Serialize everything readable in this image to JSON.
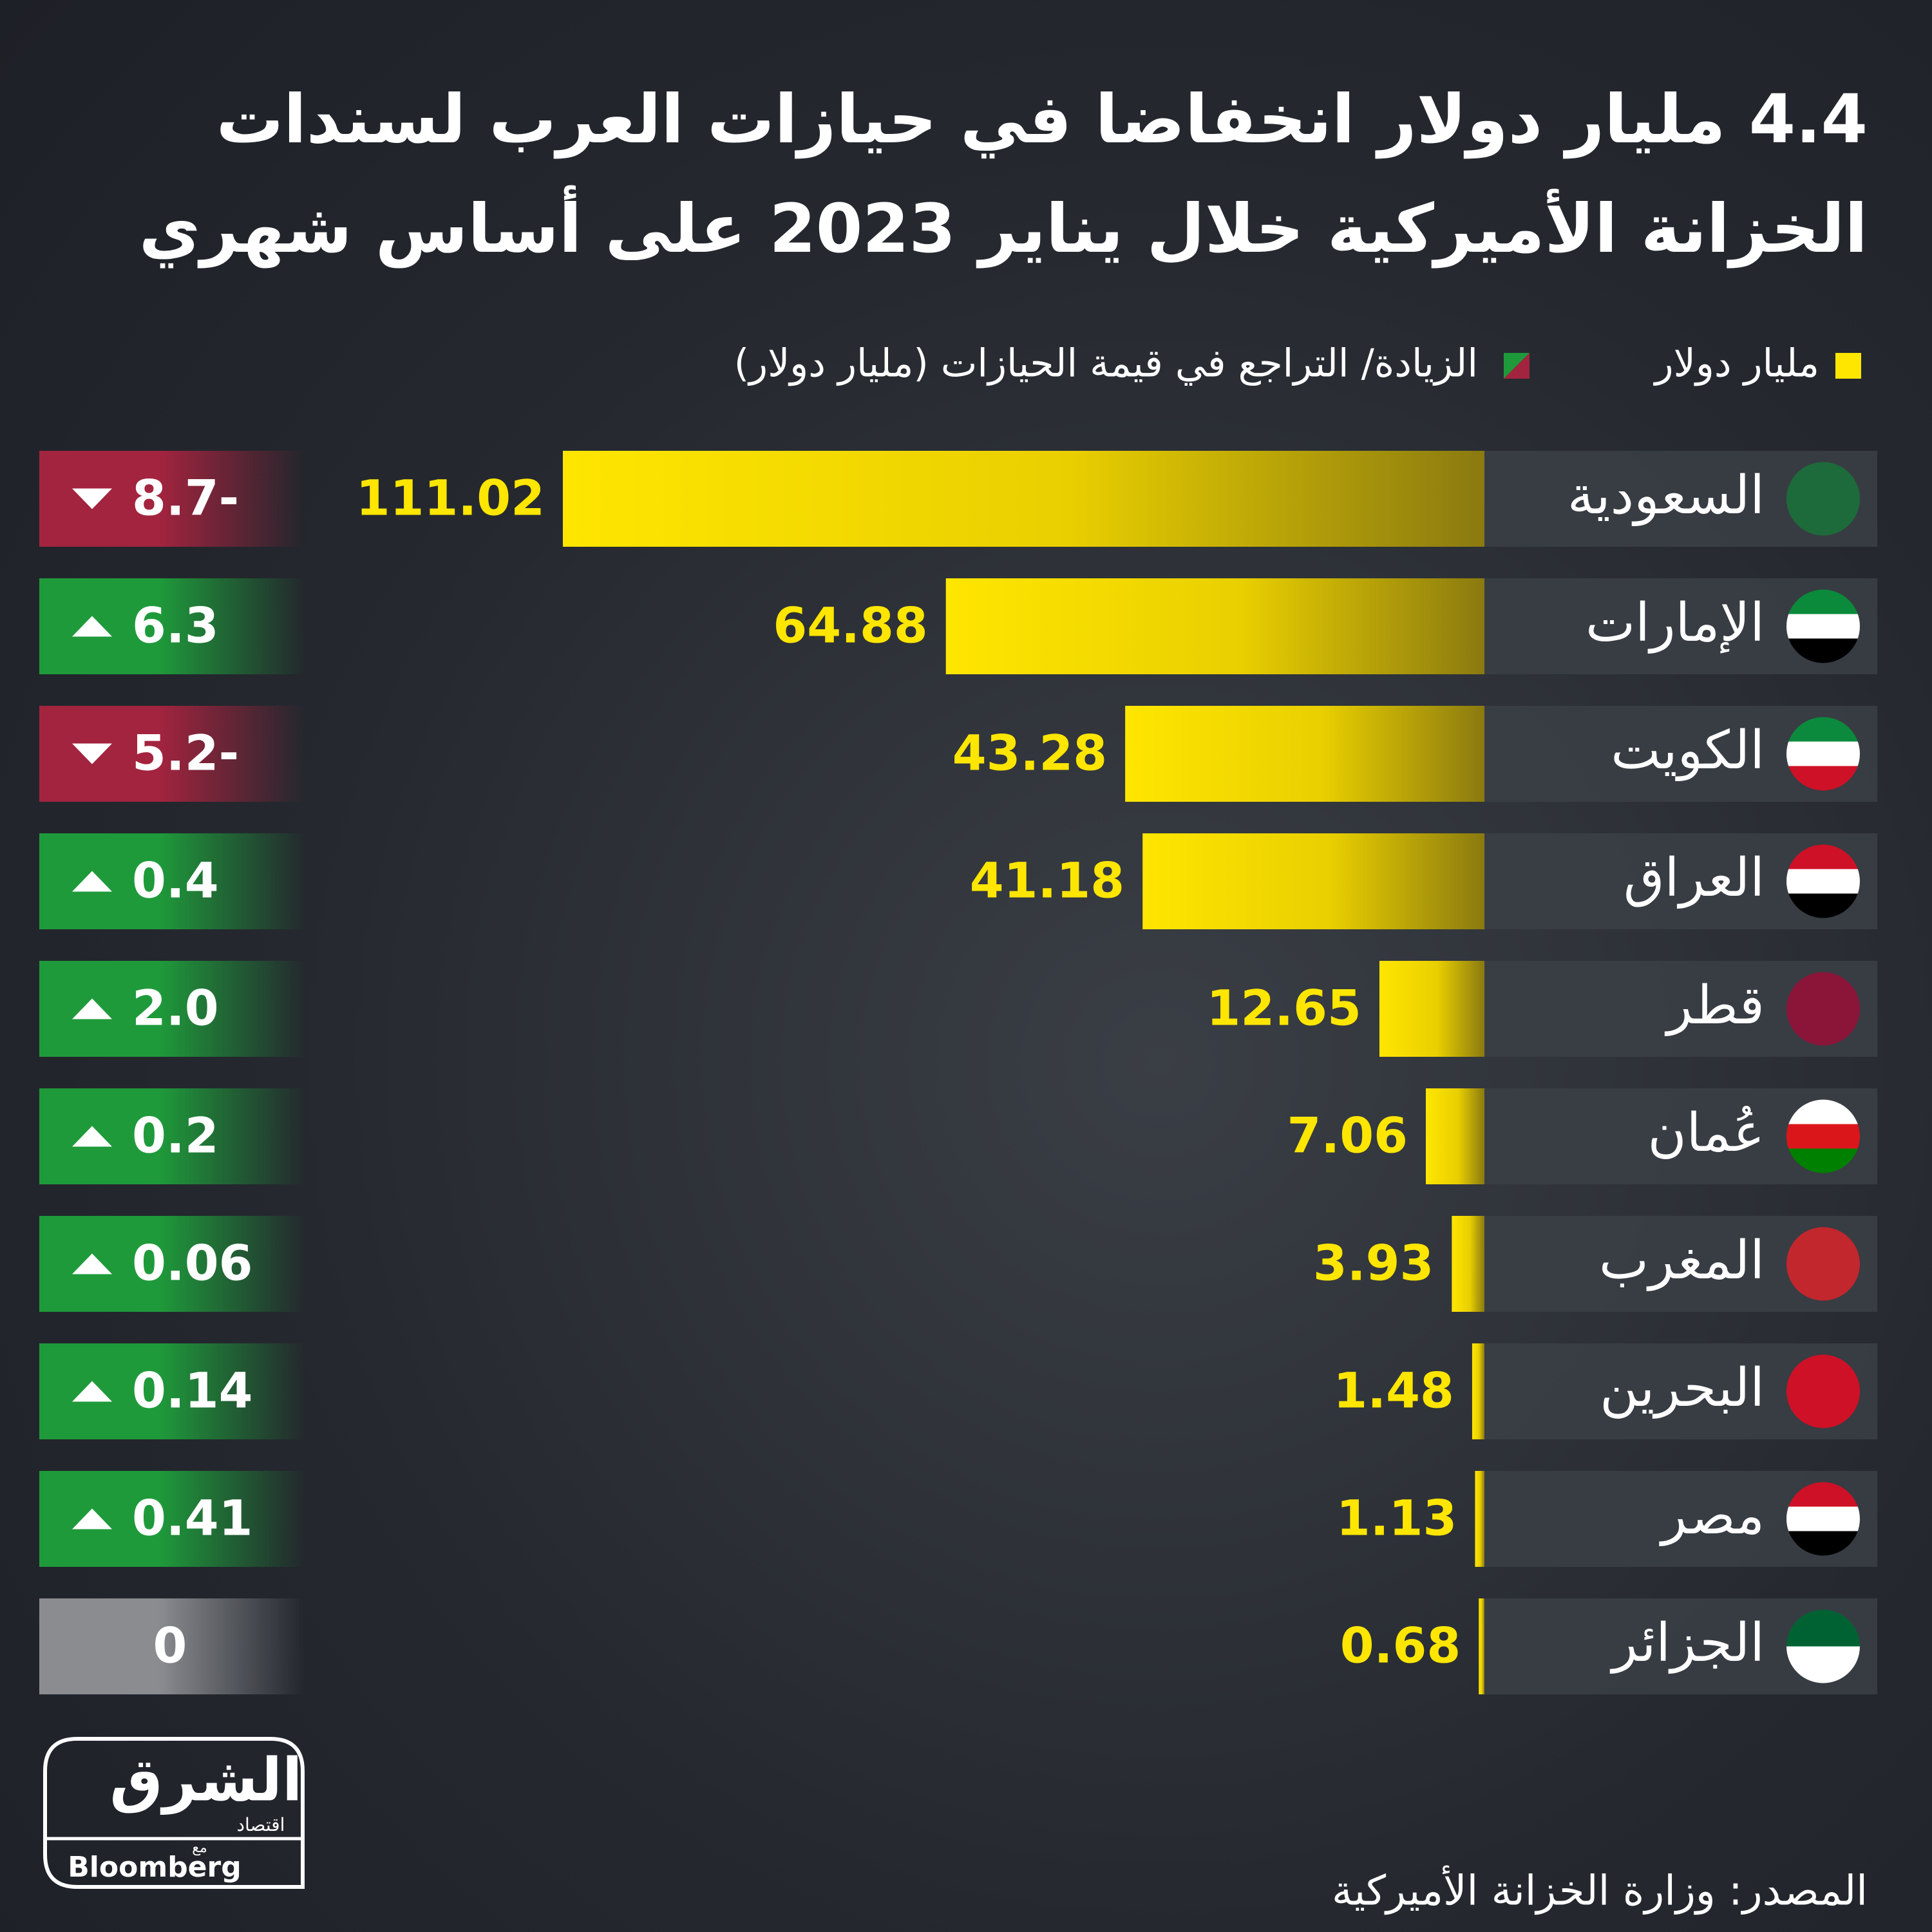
{
  "chart_data": {
    "type": "bar",
    "orientation": "horizontal",
    "title": "4.4 مليار دولار انخفاضا في حيازات العرب لسندات الخزانة الأميركية خلال يناير 2023 على أساس شهري",
    "categories": [
      "السعودية",
      "الإمارات",
      "الكويت",
      "العراق",
      "قطر",
      "عُمان",
      "المغرب",
      "البحرين",
      "مصر",
      "الجزائر"
    ],
    "series": [
      {
        "name": "مليار دولار",
        "color": "#ffe600",
        "values": [
          111.02,
          64.88,
          43.28,
          41.18,
          12.65,
          7.06,
          3.93,
          1.48,
          1.13,
          0.68
        ]
      },
      {
        "name": "الزيادة/ التراجع في قيمة الحيازات (مليار دولار)",
        "colors": {
          "up": "#1f9a3b",
          "down": "#a3243f",
          "zero": "#8a8c90"
        },
        "values": [
          -8.7,
          6.3,
          -5.2,
          0.4,
          2,
          0.2,
          0.06,
          0.14,
          0.41,
          0
        ],
        "value_labels": [
          "8.7-",
          "6.3",
          "5.2-",
          "0.4",
          "2.0",
          "0.2",
          "0.06",
          "0.14",
          "0.41",
          "0"
        ]
      }
    ]
  },
  "source": "المصدر: وزارة الخزانة الأميركية",
  "logo": {
    "name": "الشرق",
    "sub": "اقتصاد",
    "with": "مع",
    "partner": "Bloomberg"
  }
}
